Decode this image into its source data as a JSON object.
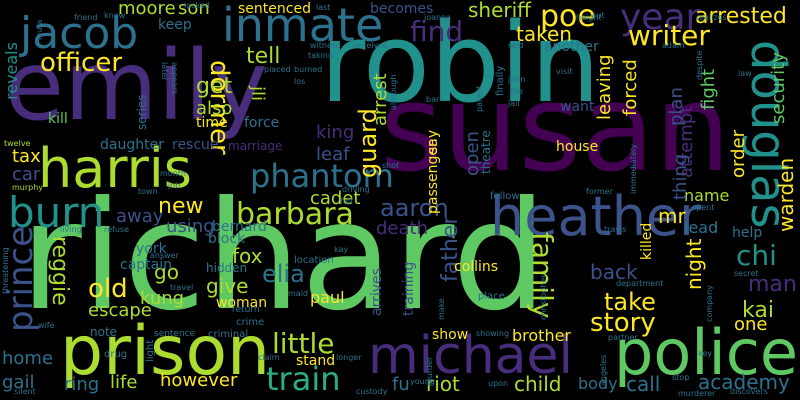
{
  "background": "#000000",
  "palette": {
    "dark_purple": "#440154",
    "purple": "#472d7b",
    "indigo": "#3b528b",
    "blue": "#2c728e",
    "teal": "#21918c",
    "green_teal": "#28ae80",
    "green": "#5ec962",
    "lime": "#addc30",
    "yellow": "#fde725"
  },
  "words": {
    "richard": "richard",
    "susan": "susan",
    "robin": "robin",
    "emily": "emily",
    "prison": "prison",
    "police": "police",
    "harris": "harris",
    "michael": "michael",
    "heather": "heather",
    "inmate": "inmate",
    "jacob": "jacob",
    "douglas": "douglas",
    "burn": "burn",
    "phantom": "phantom",
    "barbara": "barbara",
    "train": "train",
    "prince": "prince",
    "year": "year",
    "poe": "poe",
    "writer": "writer",
    "find": "find",
    "officer": "officer",
    "dormer": "dormer",
    "arrested": "arrested",
    "sheriff": "sheriff",
    "moore": "moore",
    "son": "son",
    "taken": "taken",
    "family": "family",
    "story": "story",
    "take": "take",
    "chi": "chi",
    "man": "man",
    "kai": "kai",
    "little": "little",
    "old": "old",
    "reggie": "reggie",
    "new": "new",
    "aaron": "aaron",
    "elia": "elia",
    "academy": "academy",
    "riot": "riot",
    "child": "child",
    "however": "however",
    "life": "life",
    "ring": "ring",
    "gail": "gail",
    "home": "home",
    "escape": "escape",
    "kung": "kung",
    "go": "go",
    "give": "give",
    "fox": "fox",
    "guard": "guard",
    "father": "father",
    "back": "back",
    "mr": "mr",
    "night": "night",
    "warden": "warden",
    "security": "security",
    "fight": "fight",
    "attempt": "attempt",
    "order": "order",
    "plan": "plan",
    "forced": "forced",
    "leaving": "leaving",
    "arrest": "arrest",
    "open": "open",
    "leaf": "leaf",
    "king": "king",
    "cadet": "cadet",
    "tell": "tell",
    "get": "get",
    "also": "also",
    "jli": "jli",
    "away": "away",
    "using": "using",
    "car": "car",
    "tax": "tax",
    "death": "death",
    "name": "name",
    "lead": "lead",
    "help": "help",
    "one": "one",
    "call": "call",
    "body": "body",
    "brother": "brother",
    "show": "show",
    "fu": "fu",
    "stand": "stand",
    "paul": "paul",
    "woman": "woman",
    "hidden": "hidden",
    "captain": "captain",
    "york": "york",
    "block": "block",
    "bernard": "bernard",
    "daughter": "daughter",
    "rescue": "rescue",
    "marriage": "marriage",
    "time": "time",
    "force": "force",
    "keep": "keep",
    "reveals": "reveals",
    "kill": "kill",
    "sentenced": "sentenced",
    "becomes": "becomes",
    "another": "another",
    "want": "want",
    "house": "house",
    "thing": "thing",
    "killed": "killed",
    "collins": "collins",
    "place": "place",
    "arrives": "arrives",
    "training": "training",
    "say": "say",
    "passenger": "passenger",
    "theatre": "theatre",
    "fellow": "fellow",
    "series": "series",
    "note": "note",
    "light": "light",
    "drug": "drug",
    "crime": "crime",
    "criminal": "criminal",
    "sentence": "sentence",
    "return": "return",
    "maid": "maid",
    "location": "location",
    "kay": "kay",
    "murphy": "murphy",
    "twelve": "twelve",
    "laura": "laura",
    "friend": "friend",
    "know": "know",
    "appears": "appears",
    "later": "later",
    "locked": "locked",
    "last": "last",
    "witness": "witness",
    "receives": "receives",
    "placed": "placed",
    "burned": "burned",
    "los": "los",
    "joanna": "joanna",
    "raid": "raid",
    "finally": "finally",
    "john": "john",
    "fire": "fire",
    "jail": "jail",
    "bar": "bar",
    "although": "although",
    "parent": "parent",
    "visit": "visit",
    "cut": "cut",
    "height": "height",
    "adam": "adam",
    "realizes": "realizes",
    "despite": "despite",
    "law": "law",
    "spent": "spent",
    "secret": "secret",
    "company": "company",
    "partner": "partner",
    "key": "key",
    "discovers": "discovers",
    "murderer": "murderer",
    "stop": "stop",
    "angeles": "angeles",
    "department": "department",
    "christopher": "christopher",
    "make": "make",
    "upon": "upon",
    "young": "young",
    "custody": "custody",
    "murder": "murder",
    "longer": "longer",
    "claim": "claim",
    "silent": "silent",
    "wife": "wife",
    "threatening": "threatening",
    "living": "living",
    "refuse": "refuse",
    "answer": "answer",
    "travel": "travel",
    "town": "town",
    "job": "job",
    "month": "month",
    "driving": "driving",
    "full": "full",
    "taking": "taking",
    "shot": "shot",
    "immediately": "immediately",
    "former": "former",
    "travis": "travis",
    "showing": "showing"
  }
}
